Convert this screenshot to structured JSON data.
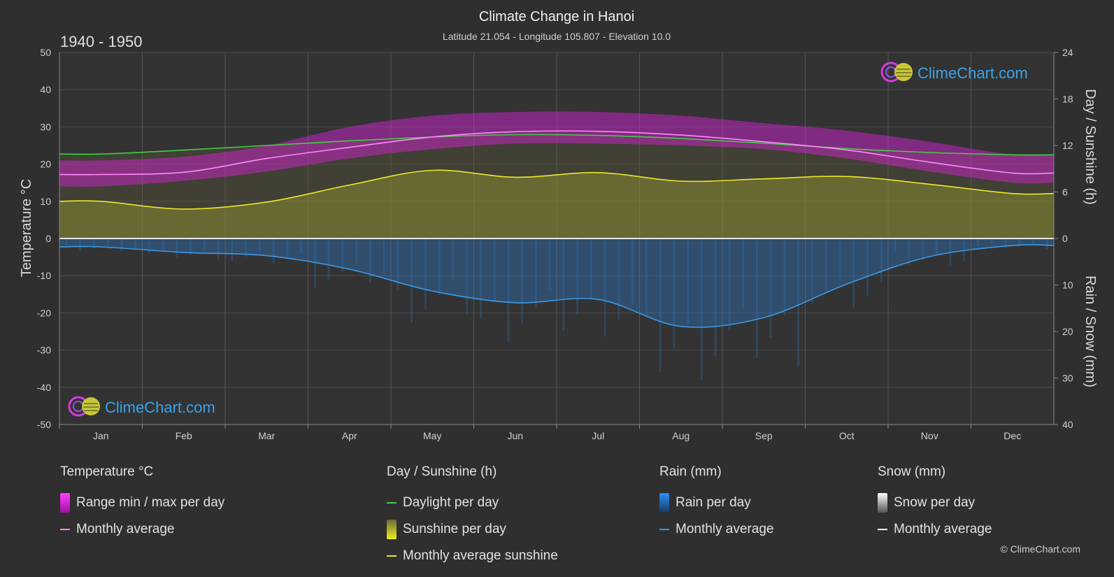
{
  "header": {
    "title": "Climate Change in Hanoi",
    "subtitle": "Latitude 21.054 - Longitude 105.807 - Elevation 10.0",
    "period": "1940 - 1950"
  },
  "brand": {
    "name": "ClimeChart.com",
    "copyright": "© ClimeChart.com"
  },
  "axes": {
    "left_title": "Temperature °C",
    "right_top_title": "Day / Sunshine (h)",
    "right_bottom_title": "Rain / Snow (mm)"
  },
  "chart_data": {
    "type": "area",
    "title": "Climate Change in Hanoi",
    "categories": [
      "Jan",
      "Feb",
      "Mar",
      "Apr",
      "May",
      "Jun",
      "Jul",
      "Aug",
      "Sep",
      "Oct",
      "Nov",
      "Dec"
    ],
    "temperature_axis": {
      "label": "Temperature °C",
      "ticks": [
        50,
        40,
        30,
        20,
        10,
        0,
        -10,
        -20,
        -30,
        -40,
        -50
      ],
      "range": [
        -50,
        50
      ]
    },
    "sunshine_axis": {
      "label": "Day / Sunshine (h)",
      "ticks": [
        24,
        18,
        12,
        6,
        0
      ],
      "range": [
        0,
        24
      ]
    },
    "rain_axis": {
      "label": "Rain / Snow (mm)",
      "ticks": [
        0,
        10,
        20,
        30,
        40
      ],
      "range": [
        0,
        40
      ]
    },
    "series": [
      {
        "name": "Temperature range min",
        "unit": "°C",
        "values": [
          14,
          15.5,
          18,
          21.5,
          24,
          25.5,
          25.5,
          25,
          24,
          21.5,
          18,
          15
        ]
      },
      {
        "name": "Temperature range max",
        "unit": "°C",
        "values": [
          21,
          22,
          25,
          30,
          33,
          34,
          34,
          33,
          31,
          29,
          26,
          22.5
        ]
      },
      {
        "name": "Temperature monthly average",
        "unit": "°C",
        "values": [
          17.2,
          17.8,
          21.5,
          24.5,
          27.3,
          28.7,
          28.8,
          27.8,
          26,
          23.8,
          20.5,
          17.6
        ]
      },
      {
        "name": "Daylight per day",
        "unit": "h",
        "values": [
          10.9,
          11.4,
          12,
          12.6,
          13.1,
          13.4,
          13.3,
          12.9,
          12.3,
          11.6,
          11.1,
          10.8
        ]
      },
      {
        "name": "Sunshine monthly average",
        "unit": "h",
        "values": [
          4.8,
          3.8,
          4.7,
          6.9,
          8.8,
          7.9,
          8.5,
          7.4,
          7.7,
          8.0,
          7.0,
          5.8
        ]
      },
      {
        "name": "Rain monthly average",
        "unit": "mm",
        "values": [
          1.8,
          3.0,
          3.7,
          6.6,
          11.3,
          13.8,
          13.1,
          18.9,
          17.0,
          9.8,
          3.9,
          1.5
        ]
      },
      {
        "name": "Snow monthly average",
        "unit": "mm",
        "values": [
          0,
          0,
          0,
          0,
          0,
          0,
          0,
          0,
          0,
          0,
          0,
          0
        ]
      }
    ]
  },
  "legend": {
    "temperature": {
      "heading": "Temperature °C",
      "items": [
        "Range min / max per day",
        "Monthly average"
      ]
    },
    "sunshine": {
      "heading": "Day / Sunshine (h)",
      "items": [
        "Daylight per day",
        "Sunshine per day",
        "Monthly average sunshine"
      ]
    },
    "rain": {
      "heading": "Rain (mm)",
      "items": [
        "Rain per day",
        "Monthly average"
      ]
    },
    "snow": {
      "heading": "Snow (mm)",
      "items": [
        "Snow per day",
        "Monthly average"
      ]
    }
  },
  "colors": {
    "temp_range": "#e020e0",
    "temp_avg": "#ff88ff",
    "daylight": "#40d040",
    "sunshine_fill": "#c8c832",
    "sunshine_avg": "#e8e82a",
    "rain": "#2a7fd4",
    "rain_avg": "#3a9ae8",
    "snow_avg": "#ffffff"
  }
}
